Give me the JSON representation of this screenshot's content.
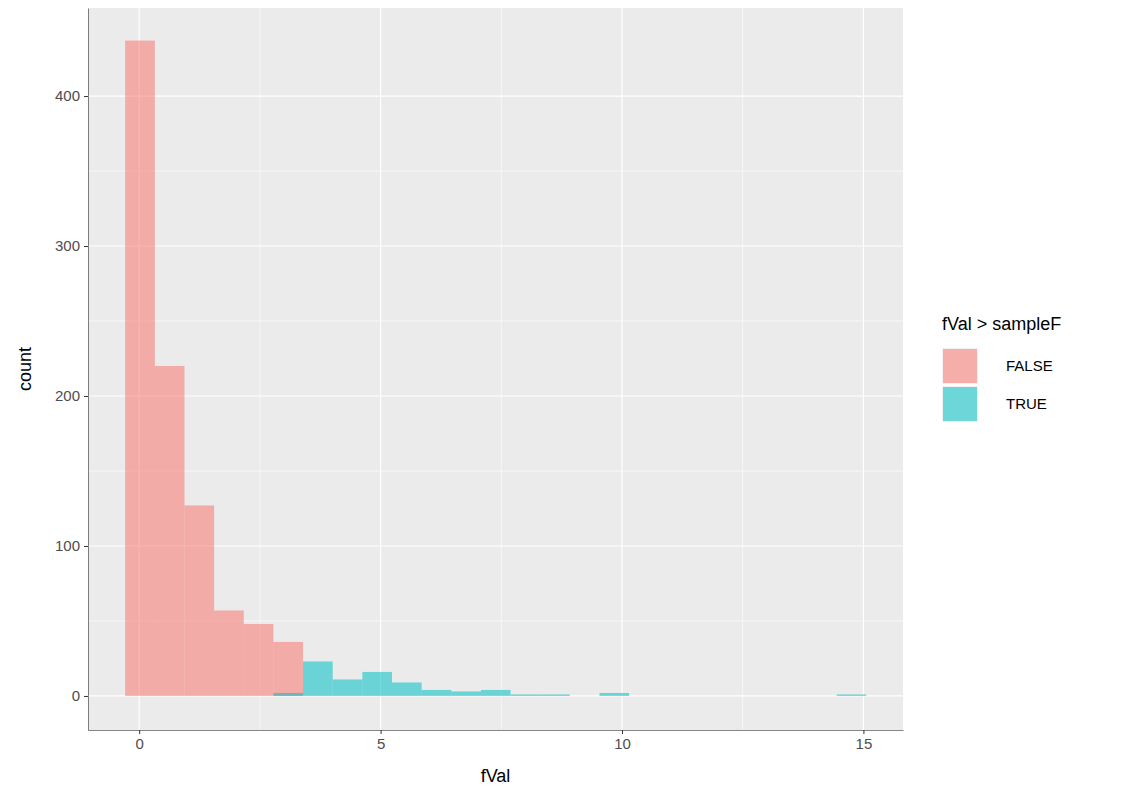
{
  "chart_data": {
    "type": "histogram",
    "x_label": "fVal",
    "y_label": "count",
    "legend_title": "fVal > sampleF",
    "legend": "right",
    "grid": true,
    "bins": [
      -0.29,
      0.324,
      0.938,
      1.552,
      2.166,
      2.78,
      3.394,
      4.008,
      4.622,
      5.236,
      5.85,
      6.464,
      7.078,
      7.692,
      8.306,
      8.92,
      9.534,
      10.148,
      10.762,
      11.376,
      11.99,
      12.604,
      13.218,
      13.832,
      14.446,
      15.06
    ],
    "series": [
      {
        "name": "FALSE",
        "color": "#F8766D",
        "values": [
          437,
          220,
          127,
          57,
          48,
          36,
          0,
          0,
          0,
          0,
          0,
          0,
          0,
          0,
          0,
          0,
          0,
          0,
          0,
          0,
          0,
          0,
          0,
          0,
          0
        ]
      },
      {
        "name": "TRUE",
        "color": "#00BFC4",
        "values": [
          0,
          0,
          0,
          0,
          0,
          2,
          23,
          11,
          16,
          9,
          4,
          3,
          4,
          1,
          1,
          0,
          2,
          0,
          0,
          0,
          0,
          0,
          0,
          0,
          1
        ]
      }
    ],
    "xlim": [
      -1.06,
      15.82
    ],
    "xticks": [
      0,
      5,
      10,
      15
    ],
    "ylim": [
      -22.7,
      458.7
    ],
    "yticks": [
      0,
      100,
      200,
      300,
      400
    ]
  }
}
